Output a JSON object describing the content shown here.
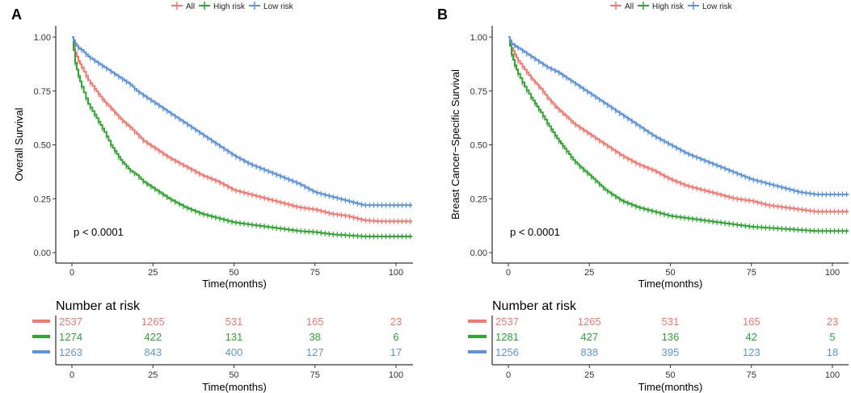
{
  "chart_data": [
    {
      "type": "line",
      "panel_label": "A",
      "legend": [
        "All",
        "High risk",
        "Low risk"
      ],
      "ylabel": "Overall Survival",
      "xlabel": "Time(months)",
      "xlim": [
        0,
        105
      ],
      "ylim": [
        0,
        1
      ],
      "xticks": [
        "0",
        "25",
        "50",
        "75",
        "100"
      ],
      "yticks": [
        "0.00",
        "0.25",
        "0.50",
        "0.75",
        "1.00"
      ],
      "pvalue": "p < 0.0001",
      "series": [
        {
          "name": "All",
          "color": "#F8766D",
          "x": [
            0,
            1,
            2,
            3,
            5,
            7,
            10,
            12,
            15,
            18,
            20,
            22,
            25,
            30,
            35,
            40,
            45,
            50,
            55,
            60,
            65,
            70,
            75,
            80,
            85,
            90,
            95,
            100,
            105
          ],
          "y": [
            1.0,
            0.93,
            0.89,
            0.86,
            0.8,
            0.76,
            0.7,
            0.67,
            0.62,
            0.58,
            0.55,
            0.52,
            0.49,
            0.44,
            0.4,
            0.36,
            0.33,
            0.29,
            0.27,
            0.25,
            0.23,
            0.21,
            0.2,
            0.18,
            0.17,
            0.15,
            0.145,
            0.145,
            0.145
          ]
        },
        {
          "name": "High risk",
          "color": "#2CA82F",
          "x": [
            0,
            1,
            2,
            3,
            5,
            7,
            10,
            12,
            15,
            18,
            20,
            22,
            25,
            30,
            35,
            40,
            45,
            50,
            55,
            60,
            65,
            70,
            75,
            80,
            85,
            90,
            95,
            100,
            105
          ],
          "y": [
            1.0,
            0.88,
            0.82,
            0.77,
            0.69,
            0.64,
            0.56,
            0.5,
            0.43,
            0.38,
            0.36,
            0.33,
            0.3,
            0.25,
            0.21,
            0.18,
            0.16,
            0.14,
            0.13,
            0.12,
            0.11,
            0.1,
            0.095,
            0.085,
            0.08,
            0.075,
            0.075,
            0.075,
            0.075
          ]
        },
        {
          "name": "Low risk",
          "color": "#5B93E1",
          "x": [
            0,
            1,
            2,
            3,
            5,
            7,
            10,
            12,
            15,
            18,
            20,
            22,
            25,
            30,
            35,
            40,
            45,
            50,
            55,
            60,
            65,
            70,
            75,
            80,
            85,
            90,
            95,
            100,
            105
          ],
          "y": [
            1.0,
            0.97,
            0.95,
            0.94,
            0.91,
            0.89,
            0.86,
            0.84,
            0.81,
            0.78,
            0.75,
            0.73,
            0.7,
            0.65,
            0.6,
            0.55,
            0.5,
            0.45,
            0.41,
            0.38,
            0.35,
            0.32,
            0.28,
            0.26,
            0.24,
            0.22,
            0.22,
            0.22,
            0.22
          ]
        }
      ],
      "risk_table": {
        "title": "Number at risk",
        "xlabel": "Time(months)",
        "times": [
          "0",
          "25",
          "50",
          "75",
          "100"
        ],
        "rows": [
          {
            "name": "All",
            "color": "#F8766D",
            "values": [
              "2537",
              "1265",
              "531",
              "165",
              "23"
            ]
          },
          {
            "name": "High risk",
            "color": "#2CA82F",
            "values": [
              "1274",
              "422",
              "131",
              "38",
              "6"
            ]
          },
          {
            "name": "Low risk",
            "color": "#5B93E1",
            "values": [
              "1263",
              "843",
              "400",
              "127",
              "17"
            ]
          }
        ]
      }
    },
    {
      "type": "line",
      "panel_label": "B",
      "legend": [
        "All",
        "High risk",
        "Low risk"
      ],
      "ylabel": "Breast Cancer−Specific Survival",
      "xlabel": "Time(months)",
      "xlim": [
        0,
        105
      ],
      "ylim": [
        0,
        1
      ],
      "xticks": [
        "0",
        "25",
        "50",
        "75",
        "100"
      ],
      "yticks": [
        "0.00",
        "0.25",
        "0.50",
        "0.75",
        "1.00"
      ],
      "pvalue": "p < 0.0001",
      "series": [
        {
          "name": "All",
          "color": "#F8766D",
          "x": [
            0,
            1,
            2,
            3,
            5,
            7,
            10,
            12,
            15,
            18,
            20,
            22,
            25,
            30,
            35,
            40,
            45,
            50,
            55,
            60,
            65,
            70,
            75,
            80,
            85,
            90,
            95,
            100,
            105
          ],
          "y": [
            1.0,
            0.95,
            0.92,
            0.89,
            0.85,
            0.81,
            0.76,
            0.72,
            0.67,
            0.63,
            0.6,
            0.58,
            0.55,
            0.5,
            0.45,
            0.41,
            0.38,
            0.34,
            0.31,
            0.29,
            0.27,
            0.25,
            0.24,
            0.22,
            0.21,
            0.2,
            0.19,
            0.19,
            0.19
          ]
        },
        {
          "name": "High risk",
          "color": "#2CA82F",
          "x": [
            0,
            1,
            2,
            3,
            5,
            7,
            10,
            12,
            15,
            18,
            20,
            22,
            25,
            30,
            35,
            40,
            45,
            50,
            55,
            60,
            65,
            70,
            75,
            80,
            85,
            90,
            95,
            100,
            105
          ],
          "y": [
            1.0,
            0.92,
            0.87,
            0.83,
            0.77,
            0.72,
            0.65,
            0.6,
            0.53,
            0.47,
            0.43,
            0.4,
            0.36,
            0.29,
            0.24,
            0.21,
            0.19,
            0.17,
            0.16,
            0.15,
            0.14,
            0.13,
            0.12,
            0.115,
            0.11,
            0.105,
            0.1,
            0.1,
            0.1
          ]
        },
        {
          "name": "Low risk",
          "color": "#5B93E1",
          "x": [
            0,
            1,
            2,
            3,
            5,
            7,
            10,
            12,
            15,
            18,
            20,
            22,
            25,
            30,
            35,
            40,
            45,
            50,
            55,
            60,
            65,
            70,
            75,
            80,
            85,
            90,
            95,
            100,
            105
          ],
          "y": [
            1.0,
            0.97,
            0.96,
            0.95,
            0.93,
            0.91,
            0.88,
            0.86,
            0.84,
            0.81,
            0.79,
            0.77,
            0.74,
            0.69,
            0.64,
            0.59,
            0.54,
            0.5,
            0.46,
            0.43,
            0.4,
            0.37,
            0.34,
            0.32,
            0.3,
            0.28,
            0.27,
            0.27,
            0.27
          ]
        }
      ],
      "risk_table": {
        "title": "Number at risk",
        "xlabel": "Time(months)",
        "times": [
          "0",
          "25",
          "50",
          "75",
          "100"
        ],
        "rows": [
          {
            "name": "All",
            "color": "#F8766D",
            "values": [
              "2537",
              "1265",
              "531",
              "165",
              "23"
            ]
          },
          {
            "name": "High risk",
            "color": "#2CA82F",
            "values": [
              "1281",
              "427",
              "136",
              "42",
              "5"
            ]
          },
          {
            "name": "Low risk",
            "color": "#5B93E1",
            "values": [
              "1256",
              "838",
              "395",
              "123",
              "18"
            ]
          }
        ]
      }
    }
  ]
}
